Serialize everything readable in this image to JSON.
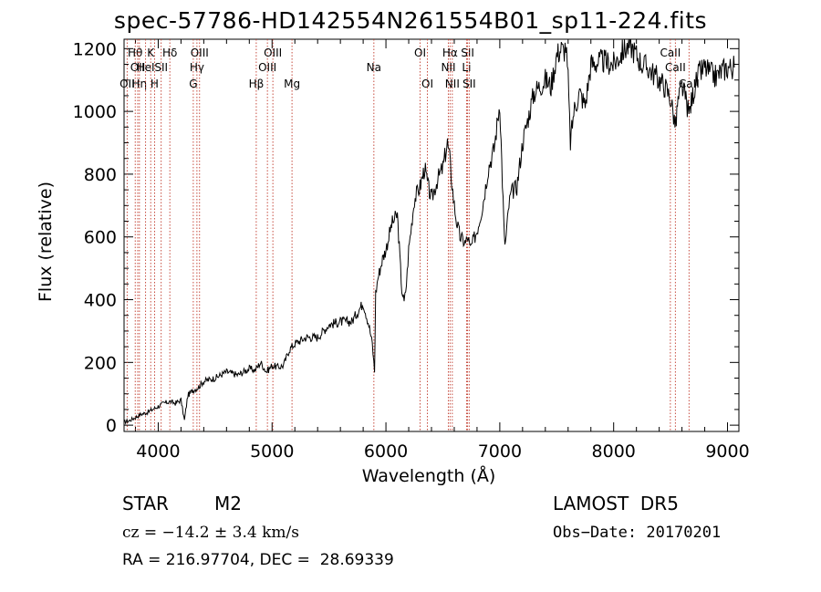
{
  "chart_data": {
    "type": "line",
    "title": "spec-57786-HD142554N261554B01_sp11-224.fits",
    "xlabel": "Wavelength (Å)",
    "ylabel": "Flux (relative)",
    "xlim": [
      3700,
      9100
    ],
    "ylim": [
      -20,
      1230
    ],
    "xticks": [
      4000,
      5000,
      6000,
      7000,
      8000,
      9000
    ],
    "yticks": [
      0,
      200,
      400,
      600,
      800,
      1000,
      1200
    ],
    "grid": false,
    "series": [
      {
        "x": [
          3700,
          3750,
          3800,
          3850,
          3900,
          3950,
          4000,
          4050,
          4100,
          4150,
          4200,
          4230,
          4260,
          4300,
          4350,
          4400,
          4500,
          4600,
          4700,
          4800,
          4850,
          4900,
          4950,
          5000,
          5050,
          5100,
          5150,
          5200,
          5250,
          5300,
          5400,
          5500,
          5600,
          5700,
          5800,
          5850,
          5880,
          5900,
          5910,
          5930,
          5970,
          6000,
          6050,
          6100,
          6140,
          6160,
          6180,
          6200,
          6250,
          6300,
          6340,
          6370,
          6400,
          6450,
          6500,
          6540,
          6560,
          6580,
          6600,
          6620,
          6650,
          6700,
          6720,
          6740,
          6800,
          6850,
          6900,
          6950,
          7000,
          7040,
          7050,
          7080,
          7100,
          7150,
          7200,
          7250,
          7300,
          7350,
          7400,
          7450,
          7500,
          7540,
          7560,
          7580,
          7600,
          7620,
          7650,
          7700,
          7750,
          7800,
          7900,
          8000,
          8100,
          8150,
          8200,
          8250,
          8300,
          8350,
          8400,
          8450,
          8500,
          8520,
          8545,
          8560,
          8600,
          8640,
          8660,
          8700,
          8750,
          8800,
          8850,
          8900,
          8950,
          9000,
          9060
        ],
        "y": [
          10,
          15,
          25,
          35,
          40,
          50,
          60,
          70,
          75,
          70,
          80,
          15,
          95,
          110,
          120,
          140,
          150,
          170,
          160,
          180,
          175,
          200,
          170,
          190,
          185,
          190,
          240,
          260,
          270,
          280,
          280,
          320,
          330,
          330,
          390,
          320,
          260,
          170,
          420,
          470,
          530,
          560,
          640,
          670,
          430,
          390,
          450,
          560,
          720,
          760,
          820,
          760,
          720,
          780,
          820,
          900,
          850,
          770,
          700,
          650,
          600,
          580,
          600,
          560,
          620,
          700,
          820,
          880,
          1030,
          590,
          580,
          700,
          740,
          760,
          900,
          980,
          1060,
          1080,
          1100,
          1080,
          1180,
          1200,
          1190,
          1210,
          1100,
          900,
          1000,
          1060,
          1020,
          1150,
          1160,
          1150,
          1200,
          1210,
          1180,
          1150,
          1140,
          1120,
          1100,
          1080,
          1040,
          1000,
          950,
          1020,
          1080,
          1030,
          990,
          1060,
          1120,
          1140,
          1120,
          1110,
          1130,
          1140,
          1140
        ]
      }
    ],
    "lines": [
      {
        "wl": 3727,
        "labels": [
          {
            "t": "OII",
            "row": 3
          }
        ]
      },
      {
        "wl": 3798,
        "labels": [
          {
            "t": "Hθ",
            "row": 1
          }
        ]
      },
      {
        "wl": 3820,
        "labels": [
          {
            "t": "OII",
            "row": 2
          }
        ]
      },
      {
        "wl": 3835,
        "labels": [
          {
            "t": "Hη",
            "row": 3
          }
        ]
      },
      {
        "wl": 3889,
        "labels": [
          {
            "t": "HeI",
            "row": 2
          }
        ]
      },
      {
        "wl": 3934,
        "labels": [
          {
            "t": "K",
            "row": 1
          }
        ]
      },
      {
        "wl": 3968,
        "labels": [
          {
            "t": "H",
            "row": 3
          }
        ]
      },
      {
        "wl": 4026,
        "labels": [
          {
            "t": "SII",
            "row": 2
          }
        ]
      },
      {
        "wl": 4102,
        "labels": [
          {
            "t": "Hδ",
            "row": 1
          }
        ]
      },
      {
        "wl": 4308,
        "labels": [
          {
            "t": "G",
            "row": 3
          }
        ]
      },
      {
        "wl": 4340,
        "labels": [
          {
            "t": "Hγ",
            "row": 2
          }
        ]
      },
      {
        "wl": 4363,
        "labels": [
          {
            "t": "OIII",
            "row": 1
          }
        ]
      },
      {
        "wl": 4861,
        "labels": [
          {
            "t": "Hβ",
            "row": 3
          }
        ]
      },
      {
        "wl": 4959,
        "labels": [
          {
            "t": "OIII",
            "row": 2
          }
        ]
      },
      {
        "wl": 5007,
        "labels": [
          {
            "t": "OIII",
            "row": 1
          }
        ]
      },
      {
        "wl": 5175,
        "labels": [
          {
            "t": "Mg",
            "row": 3
          }
        ]
      },
      {
        "wl": 5894,
        "labels": [
          {
            "t": "Na",
            "row": 2
          }
        ]
      },
      {
        "wl": 6300,
        "labels": [
          {
            "t": "OI",
            "row": 1
          }
        ]
      },
      {
        "wl": 6364,
        "labels": [
          {
            "t": "OI",
            "row": 3
          }
        ]
      },
      {
        "wl": 6548,
        "labels": [
          {
            "t": "NII",
            "row": 2
          }
        ]
      },
      {
        "wl": 6563,
        "labels": [
          {
            "t": "Hα",
            "row": 1
          }
        ]
      },
      {
        "wl": 6583,
        "labels": [
          {
            "t": "NII",
            "row": 3
          }
        ]
      },
      {
        "wl": 6708,
        "labels": [
          {
            "t": "Li",
            "row": 2
          }
        ]
      },
      {
        "wl": 6717,
        "labels": [
          {
            "t": "SII",
            "row": 1
          }
        ]
      },
      {
        "wl": 6731,
        "labels": [
          {
            "t": "SII",
            "row": 3
          }
        ]
      },
      {
        "wl": 8498,
        "labels": [
          {
            "t": "CaII",
            "row": 1
          }
        ]
      },
      {
        "wl": 8542,
        "labels": [
          {
            "t": "CaII",
            "row": 2
          }
        ]
      },
      {
        "wl": 8662,
        "labels": [
          {
            "t": "CaII",
            "row": 3
          }
        ]
      }
    ]
  },
  "info": {
    "object_class": "STAR",
    "subclass": "M2",
    "survey": "LAMOST  DR5",
    "cz": "cz = −14.2 ± 3.4 km/s",
    "obs_date": "Obs−Date: 20170201",
    "coords": "RA = 216.97704, DEC =  28.69339"
  },
  "colors": {
    "line_marker": "#c0392b",
    "spectrum": "#000000"
  }
}
